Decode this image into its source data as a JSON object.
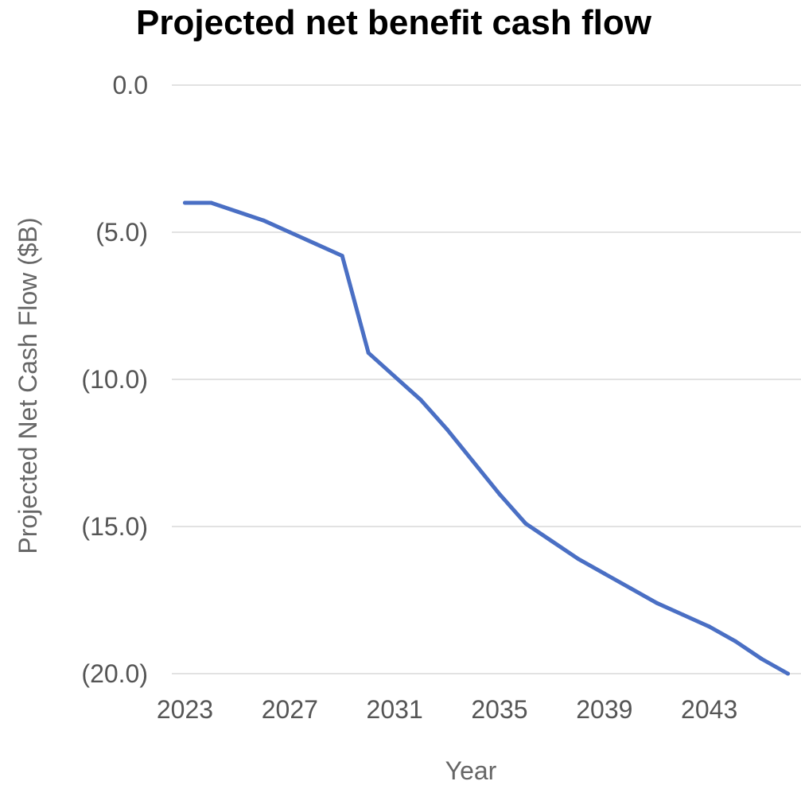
{
  "chart_data": {
    "type": "line",
    "title": "Projected net benefit cash flow",
    "xlabel": "Year",
    "ylabel": "Projected Net Cash Flow ($B)",
    "xlim": [
      2022.5,
      2046.5
    ],
    "ylim": [
      -20,
      0
    ],
    "x_ticks": [
      {
        "value": 2023,
        "label": "2023"
      },
      {
        "value": 2027,
        "label": "2027"
      },
      {
        "value": 2031,
        "label": "2031"
      },
      {
        "value": 2035,
        "label": "2035"
      },
      {
        "value": 2039,
        "label": "2039"
      },
      {
        "value": 2043,
        "label": "2043"
      }
    ],
    "y_ticks": [
      {
        "value": 0,
        "label": "0.0"
      },
      {
        "value": -5,
        "label": "(5.0)"
      },
      {
        "value": -10,
        "label": "(10.0)"
      },
      {
        "value": -15,
        "label": "(15.0)"
      },
      {
        "value": -20,
        "label": "(20.0)"
      }
    ],
    "grid": true,
    "legend": "none",
    "series": [
      {
        "color": "#4a6fc4",
        "x": [
          2023,
          2024,
          2025,
          2026,
          2027,
          2028,
          2029,
          2030,
          2031,
          2032,
          2033,
          2034,
          2035,
          2036,
          2037,
          2038,
          2039,
          2040,
          2041,
          2042,
          2043,
          2044,
          2045,
          2046
        ],
        "y": [
          -4.0,
          -4.0,
          -4.3,
          -4.6,
          -5.0,
          -5.4,
          -5.8,
          -9.1,
          -9.9,
          -10.7,
          -11.7,
          -12.8,
          -13.9,
          -14.9,
          -15.5,
          -16.1,
          -16.6,
          -17.1,
          -17.6,
          -18.0,
          -18.4,
          -18.9,
          -19.5,
          -20.0
        ]
      }
    ]
  }
}
